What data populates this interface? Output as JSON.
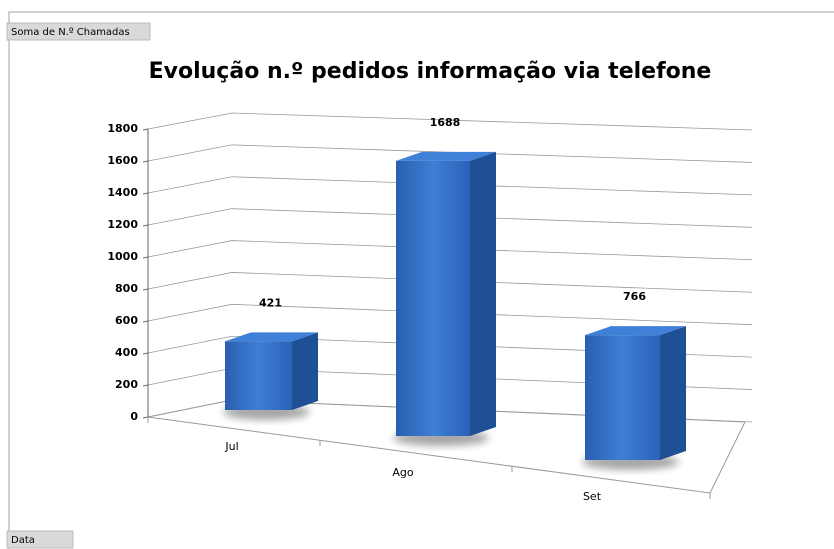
{
  "pivot": {
    "value_field": "Soma de N.º Chamadas",
    "axis_field": "Data"
  },
  "chart_data": {
    "type": "bar3d",
    "title": "Evolução n.º pedidos informação via telefone",
    "categories": [
      "Jul",
      "Ago",
      "Set"
    ],
    "values": [
      421,
      1688,
      766
    ],
    "color": "#2f6cc4",
    "ylim": [
      0,
      1800
    ],
    "yticks": [
      0,
      200,
      400,
      600,
      800,
      1000,
      1200,
      1400,
      1600,
      1800
    ],
    "grid": true
  }
}
